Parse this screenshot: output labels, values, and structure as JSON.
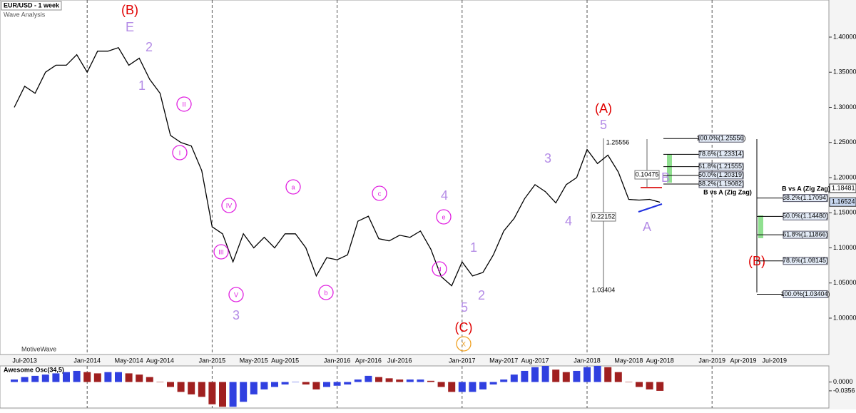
{
  "header": {
    "title": "EUR/USD - 1 week",
    "subtitle": "Wave Analysis",
    "brand": "MotiveWave"
  },
  "chart_data": {
    "type": "line",
    "title": "EUR/USD - 1 week",
    "categories": [
      null,
      "Jul-2013",
      null,
      null,
      null,
      null,
      null,
      "Jan-2014",
      null,
      null,
      null,
      "May-2014",
      null,
      null,
      "Aug-2014",
      null,
      null,
      null,
      null,
      "Jan-2015",
      null,
      null,
      null,
      "May-2015",
      null,
      null,
      "Aug-2015",
      null,
      null,
      null,
      null,
      "Jan-2016",
      null,
      null,
      "Apr-2016",
      null,
      null,
      "Jul-2016",
      null,
      null,
      null,
      null,
      null,
      "Jan-2017",
      null,
      null,
      null,
      "May-2017",
      null,
      null,
      "Aug-2017",
      null,
      null,
      null,
      null,
      "Jan-2018",
      null,
      null,
      null,
      "May-2018",
      null,
      null,
      "Aug-2018",
      null,
      null,
      null,
      null,
      "Jan-2019",
      null,
      null,
      "Apr-2019",
      null,
      null,
      "Jul-2019",
      null,
      null,
      null,
      null,
      null
    ],
    "series": [
      {
        "name": "EUR/USD",
        "color": "#000000",
        "values": [
          1.3,
          1.33,
          1.32,
          1.35,
          1.36,
          1.36,
          1.375,
          1.35,
          1.38,
          1.38,
          1.385,
          1.36,
          1.37,
          1.34,
          1.32,
          1.26,
          1.25,
          1.245,
          1.21,
          1.13,
          1.12,
          1.08,
          1.12,
          1.1,
          1.115,
          1.1,
          1.12,
          1.12,
          1.1,
          1.06,
          1.086,
          1.083,
          1.09,
          1.138,
          1.145,
          1.113,
          1.11,
          1.118,
          1.115,
          1.124,
          1.098,
          1.059,
          1.046,
          1.08,
          1.06,
          1.065,
          1.09,
          1.124,
          1.142,
          1.17,
          1.19,
          1.18,
          1.164,
          1.19,
          1.2,
          1.24,
          1.22,
          1.232,
          1.208,
          1.169,
          1.168,
          1.169,
          1.165,
          null,
          null,
          null,
          null,
          null,
          null,
          null,
          null,
          null,
          null,
          null,
          null,
          null,
          null,
          null,
          null
        ]
      }
    ],
    "ylim": [
      0.9482,
      1.4528
    ],
    "yticks": [
      {
        "value": 1.0,
        "label": "1.00000"
      },
      {
        "value": 1.05,
        "label": "1.05000"
      },
      {
        "value": 1.1,
        "label": "1.10000"
      },
      {
        "value": 1.15,
        "label": "1.15000"
      },
      {
        "value": 1.2,
        "label": "1.20000"
      },
      {
        "value": 1.25,
        "label": "1.25000"
      },
      {
        "value": 1.3,
        "label": "1.30000"
      },
      {
        "value": 1.35,
        "label": "1.35000"
      },
      {
        "value": 1.4,
        "label": "1.40000"
      }
    ],
    "price_tags": [
      {
        "value": 1.18481,
        "label": "1.18481",
        "color": "#ffffff"
      },
      {
        "value": 1.16524,
        "label": "1.16524",
        "color": "#c8d8f0"
      }
    ],
    "annotations": [
      {
        "text": "(B)",
        "color": "#e00000"
      },
      {
        "text": "E",
        "color": "#b48ce6"
      },
      {
        "text": "2",
        "color": "#b48ce6"
      },
      {
        "text": "1",
        "color": "#b48ce6"
      },
      {
        "text": "II",
        "color": "#e020e0"
      },
      {
        "text": "I",
        "color": "#e020e0"
      },
      {
        "text": "IV",
        "color": "#e020e0"
      },
      {
        "text": "III",
        "color": "#e020e0"
      },
      {
        "text": "V",
        "color": "#e020e0"
      },
      {
        "text": "3",
        "color": "#b48ce6"
      },
      {
        "text": "a",
        "color": "#e020e0"
      },
      {
        "text": "b",
        "color": "#e020e0"
      },
      {
        "text": "c",
        "color": "#e020e0"
      },
      {
        "text": "4",
        "color": "#b48ce6"
      },
      {
        "text": "e",
        "color": "#e020e0"
      },
      {
        "text": "d",
        "color": "#e020e0"
      },
      {
        "text": "1",
        "color": "#b48ce6"
      },
      {
        "text": "2",
        "color": "#b48ce6"
      },
      {
        "text": "5",
        "color": "#b48ce6"
      },
      {
        "text": "(C)",
        "color": "#e00000"
      },
      {
        "text": "X",
        "color": "#f0a020"
      },
      {
        "text": "3",
        "color": "#b48ce6"
      },
      {
        "text": "4",
        "color": "#b48ce6"
      },
      {
        "text": "(A)",
        "color": "#e00000"
      },
      {
        "text": "5",
        "color": "#b48ce6"
      },
      {
        "text": "B",
        "color": "#b48ce6"
      },
      {
        "text": "A",
        "color": "#b48ce6"
      },
      {
        "text": "(B)",
        "color": "#e00000"
      }
    ],
    "measure_labels": [
      "1.25556",
      "0.10475",
      "0.22152",
      "1.03404"
    ],
    "fib_sets": [
      {
        "title": "B vs A (Zig Zag)",
        "levels": [
          {
            "value": 1.25556,
            "label": "100.0%(1.25556)"
          },
          {
            "value": 1.23314,
            "label": "78.6%(1.23314)"
          },
          {
            "value": 1.21555,
            "label": "61.8%(1.21555)"
          },
          {
            "value": 1.20319,
            "label": "50.0%(1.20319)"
          },
          {
            "value": 1.19082,
            "label": "38.2%(1.19082)"
          }
        ]
      },
      {
        "title": "B vs A (Zig Zag)",
        "levels": [
          {
            "value": 1.17094,
            "label": "38.2%(1.17094)"
          },
          {
            "value": 1.1448,
            "label": "50.0%(1.14480)"
          },
          {
            "value": 1.11866,
            "label": "61.8%(1.11866)"
          },
          {
            "value": 1.08145,
            "label": "78.6%(1.08145)"
          },
          {
            "value": 1.03404,
            "label": "100.0%(1.03404)"
          }
        ]
      }
    ],
    "oscillator": {
      "title": "Awesome Osc(34,5)",
      "up_color": "#3040e0",
      "down_color": "#a02020",
      "values": [
        0.01,
        0.02,
        0.025,
        0.03,
        0.035,
        0.04,
        0.045,
        0.04,
        0.035,
        0.04,
        0.04,
        0.035,
        0.03,
        0.02,
        0.0,
        -0.02,
        -0.04,
        -0.05,
        -0.06,
        -0.09,
        -0.1,
        -0.1,
        -0.08,
        -0.05,
        -0.03,
        -0.02,
        -0.01,
        0.0,
        -0.01,
        -0.03,
        -0.02,
        -0.015,
        -0.01,
        0.01,
        0.025,
        0.02,
        0.015,
        0.01,
        0.01,
        0.01,
        0.005,
        -0.02,
        -0.04,
        -0.04,
        -0.04,
        -0.03,
        -0.01,
        0.01,
        0.03,
        0.045,
        0.06,
        0.065,
        0.05,
        0.04,
        0.045,
        0.06,
        0.065,
        0.06,
        0.04,
        0.0,
        -0.02,
        -0.03,
        -0.0356
      ],
      "ylim": [
        -0.105,
        0.065
      ],
      "yticks": [
        {
          "value": 0,
          "label": "0.0000"
        },
        {
          "value": -0.0356,
          "label": "-0.0356"
        }
      ]
    }
  }
}
